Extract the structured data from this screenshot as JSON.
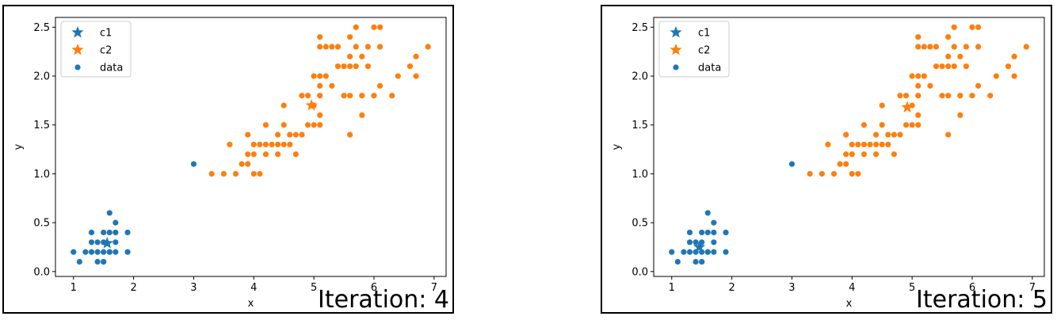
{
  "colors": {
    "cluster1": "#1f77b4",
    "cluster2": "#ff7f0e",
    "axes": "#000000"
  },
  "chart_data": [
    {
      "type": "scatter",
      "iteration_text": "Iteration: 4",
      "xlabel": "x",
      "ylabel": "y",
      "xlim": [
        0.7,
        7.2
      ],
      "ylim": [
        -0.05,
        2.6
      ],
      "xticks": [
        "1",
        "2",
        "3",
        "4",
        "5",
        "6",
        "7"
      ],
      "yticks": [
        "0.0",
        "0.5",
        "1.0",
        "1.5",
        "2.0",
        "2.5"
      ],
      "legend": {
        "position": "upper-left",
        "entries": [
          "c1",
          "c2",
          "data"
        ]
      },
      "centroids": [
        {
          "name": "c1",
          "x": 1.56,
          "y": 0.29,
          "color": "#1f77b4"
        },
        {
          "name": "c2",
          "x": 4.96,
          "y": 1.7,
          "color": "#ff7f0e"
        }
      ],
      "series": [
        {
          "cluster": 1,
          "color": "#1f77b4",
          "points": [
            [
              1.0,
              0.2
            ],
            [
              1.1,
              0.1
            ],
            [
              1.2,
              0.2
            ],
            [
              1.3,
              0.2
            ],
            [
              1.3,
              0.3
            ],
            [
              1.3,
              0.4
            ],
            [
              1.4,
              0.2
            ],
            [
              1.4,
              0.3
            ],
            [
              1.4,
              0.1
            ],
            [
              1.5,
              0.1
            ],
            [
              1.5,
              0.2
            ],
            [
              1.5,
              0.3
            ],
            [
              1.5,
              0.4
            ],
            [
              1.5,
              0.1
            ],
            [
              1.6,
              0.2
            ],
            [
              1.6,
              0.4
            ],
            [
              1.6,
              0.6
            ],
            [
              1.6,
              0.2
            ],
            [
              1.7,
              0.2
            ],
            [
              1.7,
              0.3
            ],
            [
              1.7,
              0.4
            ],
            [
              1.7,
              0.5
            ],
            [
              1.9,
              0.2
            ],
            [
              1.9,
              0.4
            ],
            [
              3.0,
              1.1
            ]
          ]
        },
        {
          "cluster": 2,
          "color": "#ff7f0e",
          "points": [
            [
              3.3,
              1.0
            ],
            [
              3.5,
              1.0
            ],
            [
              3.6,
              1.3
            ],
            [
              3.7,
              1.0
            ],
            [
              3.8,
              1.1
            ],
            [
              3.9,
              1.1
            ],
            [
              3.9,
              1.2
            ],
            [
              3.9,
              1.4
            ],
            [
              4.0,
              1.0
            ],
            [
              4.0,
              1.2
            ],
            [
              4.0,
              1.3
            ],
            [
              4.1,
              1.0
            ],
            [
              4.1,
              1.3
            ],
            [
              4.2,
              1.2
            ],
            [
              4.2,
              1.3
            ],
            [
              4.2,
              1.5
            ],
            [
              4.3,
              1.3
            ],
            [
              4.4,
              1.2
            ],
            [
              4.4,
              1.3
            ],
            [
              4.4,
              1.4
            ],
            [
              4.5,
              1.3
            ],
            [
              4.5,
              1.5
            ],
            [
              4.5,
              1.7
            ],
            [
              4.6,
              1.3
            ],
            [
              4.6,
              1.4
            ],
            [
              4.7,
              1.2
            ],
            [
              4.7,
              1.4
            ],
            [
              4.8,
              1.4
            ],
            [
              4.8,
              1.8
            ],
            [
              4.9,
              1.5
            ],
            [
              4.9,
              1.8
            ],
            [
              5.0,
              1.5
            ],
            [
              5.0,
              1.7
            ],
            [
              5.0,
              2.0
            ],
            [
              5.1,
              1.5
            ],
            [
              5.1,
              1.6
            ],
            [
              5.1,
              1.8
            ],
            [
              5.1,
              1.9
            ],
            [
              5.1,
              2.0
            ],
            [
              5.1,
              2.3
            ],
            [
              5.1,
              2.4
            ],
            [
              5.2,
              2.0
            ],
            [
              5.2,
              2.3
            ],
            [
              5.3,
              1.9
            ],
            [
              5.3,
              2.3
            ],
            [
              5.4,
              2.1
            ],
            [
              5.4,
              2.3
            ],
            [
              5.5,
              1.8
            ],
            [
              5.5,
              2.1
            ],
            [
              5.6,
              1.4
            ],
            [
              5.6,
              1.8
            ],
            [
              5.6,
              2.1
            ],
            [
              5.6,
              2.2
            ],
            [
              5.6,
              2.4
            ],
            [
              5.7,
              2.1
            ],
            [
              5.7,
              2.3
            ],
            [
              5.7,
              2.5
            ],
            [
              5.8,
              1.6
            ],
            [
              5.8,
              1.8
            ],
            [
              5.8,
              2.2
            ],
            [
              5.9,
              2.1
            ],
            [
              5.9,
              2.3
            ],
            [
              6.0,
              1.8
            ],
            [
              6.0,
              2.5
            ],
            [
              6.1,
              1.9
            ],
            [
              6.1,
              2.3
            ],
            [
              6.1,
              2.5
            ],
            [
              6.3,
              1.8
            ],
            [
              6.4,
              2.0
            ],
            [
              6.6,
              2.1
            ],
            [
              6.7,
              2.0
            ],
            [
              6.7,
              2.2
            ],
            [
              6.9,
              2.3
            ]
          ]
        }
      ]
    },
    {
      "type": "scatter",
      "iteration_text": "Iteration: 5",
      "xlabel": "x",
      "ylabel": "y",
      "xlim": [
        0.7,
        7.2
      ],
      "ylim": [
        -0.05,
        2.6
      ],
      "xticks": [
        "1",
        "2",
        "3",
        "4",
        "5",
        "6",
        "7"
      ],
      "yticks": [
        "0.0",
        "0.5",
        "1.0",
        "1.5",
        "2.0",
        "2.5"
      ],
      "legend": {
        "position": "upper-left",
        "entries": [
          "c1",
          "c2",
          "data"
        ]
      },
      "centroids": [
        {
          "name": "c1",
          "x": 1.46,
          "y": 0.25,
          "color": "#1f77b4"
        },
        {
          "name": "c2",
          "x": 4.92,
          "y": 1.68,
          "color": "#ff7f0e"
        }
      ],
      "series": [
        {
          "cluster": 1,
          "color": "#1f77b4",
          "points": [
            [
              1.0,
              0.2
            ],
            [
              1.1,
              0.1
            ],
            [
              1.2,
              0.2
            ],
            [
              1.3,
              0.2
            ],
            [
              1.3,
              0.3
            ],
            [
              1.3,
              0.4
            ],
            [
              1.4,
              0.2
            ],
            [
              1.4,
              0.3
            ],
            [
              1.4,
              0.1
            ],
            [
              1.5,
              0.1
            ],
            [
              1.5,
              0.2
            ],
            [
              1.5,
              0.3
            ],
            [
              1.5,
              0.4
            ],
            [
              1.5,
              0.1
            ],
            [
              1.6,
              0.2
            ],
            [
              1.6,
              0.4
            ],
            [
              1.6,
              0.6
            ],
            [
              1.6,
              0.2
            ],
            [
              1.7,
              0.2
            ],
            [
              1.7,
              0.3
            ],
            [
              1.7,
              0.4
            ],
            [
              1.7,
              0.5
            ],
            [
              1.9,
              0.2
            ],
            [
              1.9,
              0.4
            ],
            [
              3.0,
              1.1
            ]
          ]
        },
        {
          "cluster": 2,
          "color": "#ff7f0e",
          "points": [
            [
              3.3,
              1.0
            ],
            [
              3.5,
              1.0
            ],
            [
              3.6,
              1.3
            ],
            [
              3.7,
              1.0
            ],
            [
              3.8,
              1.1
            ],
            [
              3.9,
              1.1
            ],
            [
              3.9,
              1.2
            ],
            [
              3.9,
              1.4
            ],
            [
              4.0,
              1.0
            ],
            [
              4.0,
              1.2
            ],
            [
              4.0,
              1.3
            ],
            [
              4.1,
              1.0
            ],
            [
              4.1,
              1.3
            ],
            [
              4.2,
              1.2
            ],
            [
              4.2,
              1.3
            ],
            [
              4.2,
              1.5
            ],
            [
              4.3,
              1.3
            ],
            [
              4.4,
              1.2
            ],
            [
              4.4,
              1.3
            ],
            [
              4.4,
              1.4
            ],
            [
              4.5,
              1.3
            ],
            [
              4.5,
              1.5
            ],
            [
              4.5,
              1.7
            ],
            [
              4.6,
              1.3
            ],
            [
              4.6,
              1.4
            ],
            [
              4.7,
              1.2
            ],
            [
              4.7,
              1.4
            ],
            [
              4.8,
              1.4
            ],
            [
              4.8,
              1.8
            ],
            [
              4.9,
              1.5
            ],
            [
              4.9,
              1.8
            ],
            [
              5.0,
              1.5
            ],
            [
              5.0,
              1.7
            ],
            [
              5.0,
              2.0
            ],
            [
              5.1,
              1.5
            ],
            [
              5.1,
              1.6
            ],
            [
              5.1,
              1.8
            ],
            [
              5.1,
              1.9
            ],
            [
              5.1,
              2.0
            ],
            [
              5.1,
              2.3
            ],
            [
              5.1,
              2.4
            ],
            [
              5.2,
              2.0
            ],
            [
              5.2,
              2.3
            ],
            [
              5.3,
              1.9
            ],
            [
              5.3,
              2.3
            ],
            [
              5.4,
              2.1
            ],
            [
              5.4,
              2.3
            ],
            [
              5.5,
              1.8
            ],
            [
              5.5,
              2.1
            ],
            [
              5.6,
              1.4
            ],
            [
              5.6,
              1.8
            ],
            [
              5.6,
              2.1
            ],
            [
              5.6,
              2.2
            ],
            [
              5.6,
              2.4
            ],
            [
              5.7,
              2.1
            ],
            [
              5.7,
              2.3
            ],
            [
              5.7,
              2.5
            ],
            [
              5.8,
              1.6
            ],
            [
              5.8,
              1.8
            ],
            [
              5.8,
              2.2
            ],
            [
              5.9,
              2.1
            ],
            [
              5.9,
              2.3
            ],
            [
              6.0,
              1.8
            ],
            [
              6.0,
              2.5
            ],
            [
              6.1,
              1.9
            ],
            [
              6.1,
              2.3
            ],
            [
              6.1,
              2.5
            ],
            [
              6.3,
              1.8
            ],
            [
              6.4,
              2.0
            ],
            [
              6.6,
              2.1
            ],
            [
              6.7,
              2.0
            ],
            [
              6.7,
              2.2
            ],
            [
              6.9,
              2.3
            ]
          ]
        }
      ]
    }
  ]
}
